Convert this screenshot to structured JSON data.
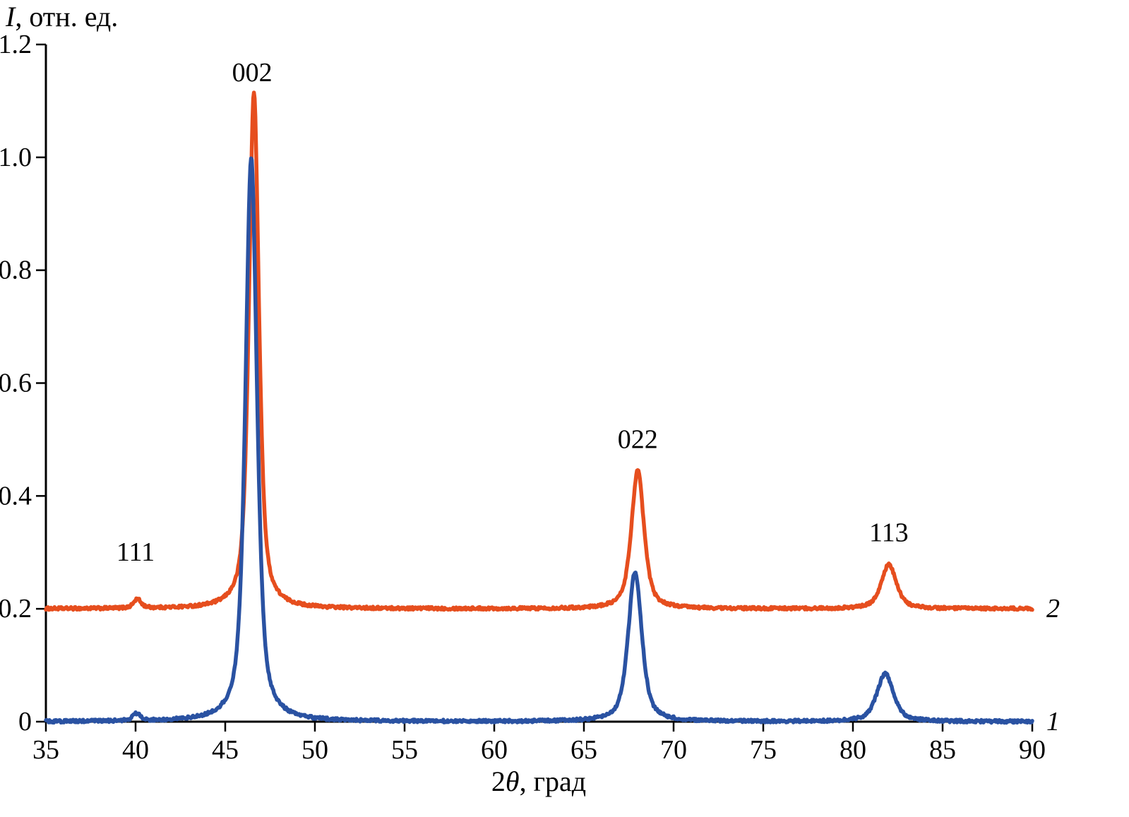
{
  "figure": {
    "ylabel_italic": "I",
    "ylabel_rest": ", отн. ед.",
    "xlabel_prefix": "2",
    "xlabel_theta": "θ",
    "xlabel_rest": ", град",
    "background": "#ffffff",
    "axis_color": "#000000"
  },
  "chart_data": {
    "type": "line",
    "title": "",
    "xlabel": "2θ, град",
    "ylabel": "I, отн. ед.",
    "xlim": [
      35,
      90
    ],
    "ylim": [
      0,
      1.2
    ],
    "grid": false,
    "legend_position": "right-edge-curve-labels",
    "x_ticks": [
      35,
      40,
      45,
      50,
      55,
      60,
      65,
      70,
      75,
      80,
      85,
      90
    ],
    "y_ticks": [
      {
        "v": 0,
        "label": "0"
      },
      {
        "v": 0.2,
        "label": "0.2"
      },
      {
        "v": 0.4,
        "label": "0.4"
      },
      {
        "v": 0.6,
        "label": "0.6"
      },
      {
        "v": 0.8,
        "label": "0.8"
      },
      {
        "v": 1.0,
        "label": "1.0"
      },
      {
        "v": 1.2,
        "label": "1.2"
      }
    ],
    "series": [
      {
        "name": "2",
        "color": "#e64e1e",
        "baseline": 0.2,
        "peaks": [
          {
            "center": 40.1,
            "height": 0.016,
            "hwhm": 0.25,
            "hkl": "111"
          },
          {
            "center": 46.6,
            "height": 0.915,
            "hwhm": 0.33,
            "hkl": "002"
          },
          {
            "center": 68.0,
            "height": 0.245,
            "hwhm": 0.42,
            "hkl": "022"
          },
          {
            "center": 82.0,
            "height": 0.078,
            "hwhm": 0.5,
            "hkl": "113"
          }
        ]
      },
      {
        "name": "1",
        "color": "#2a52a2",
        "baseline": 0.0,
        "peaks": [
          {
            "center": 40.05,
            "height": 0.013,
            "hwhm": 0.25,
            "hkl": "111"
          },
          {
            "center": 46.45,
            "height": 1.0,
            "hwhm": 0.38,
            "hkl": "002"
          },
          {
            "center": 67.85,
            "height": 0.265,
            "hwhm": 0.45,
            "hkl": "022"
          },
          {
            "center": 81.8,
            "height": 0.085,
            "hwhm": 0.55,
            "hkl": "113"
          }
        ]
      }
    ],
    "annotations": [
      {
        "text": "111",
        "x": 40.0,
        "y": 0.285
      },
      {
        "text": "002",
        "x": 46.5,
        "y": 1.135
      },
      {
        "text": "022",
        "x": 68.0,
        "y": 0.485
      },
      {
        "text": "113",
        "x": 82.0,
        "y": 0.32
      }
    ]
  }
}
